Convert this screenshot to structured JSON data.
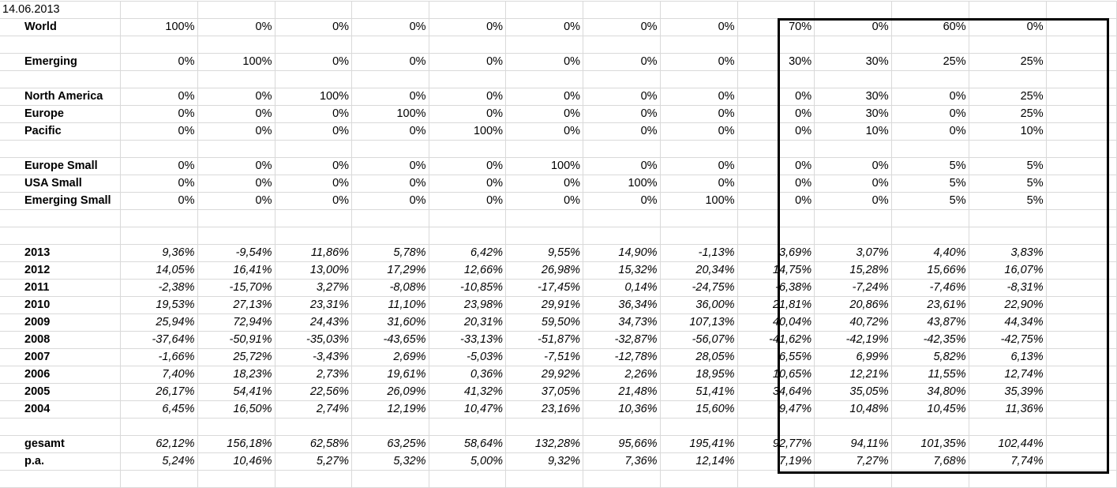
{
  "date": "14.06.2013",
  "rows": [
    {
      "type": "alloc",
      "label": "World",
      "values": [
        "100%",
        "0%",
        "0%",
        "0%",
        "0%",
        "0%",
        "0%",
        "0%",
        "70%",
        "0%",
        "60%",
        "0%"
      ]
    },
    {
      "type": "empty"
    },
    {
      "type": "alloc",
      "label": "Emerging",
      "values": [
        "0%",
        "100%",
        "0%",
        "0%",
        "0%",
        "0%",
        "0%",
        "0%",
        "30%",
        "30%",
        "25%",
        "25%"
      ]
    },
    {
      "type": "empty"
    },
    {
      "type": "alloc",
      "label": "North America",
      "values": [
        "0%",
        "0%",
        "100%",
        "0%",
        "0%",
        "0%",
        "0%",
        "0%",
        "0%",
        "30%",
        "0%",
        "25%"
      ]
    },
    {
      "type": "alloc",
      "label": "Europe",
      "values": [
        "0%",
        "0%",
        "0%",
        "100%",
        "0%",
        "0%",
        "0%",
        "0%",
        "0%",
        "30%",
        "0%",
        "25%"
      ]
    },
    {
      "type": "alloc",
      "label": "Pacific",
      "values": [
        "0%",
        "0%",
        "0%",
        "0%",
        "100%",
        "0%",
        "0%",
        "0%",
        "0%",
        "10%",
        "0%",
        "10%"
      ]
    },
    {
      "type": "empty"
    },
    {
      "type": "alloc",
      "label": "Europe Small",
      "values": [
        "0%",
        "0%",
        "0%",
        "0%",
        "0%",
        "100%",
        "0%",
        "0%",
        "0%",
        "0%",
        "5%",
        "5%"
      ]
    },
    {
      "type": "alloc",
      "label": "USA Small",
      "values": [
        "0%",
        "0%",
        "0%",
        "0%",
        "0%",
        "0%",
        "100%",
        "0%",
        "0%",
        "0%",
        "5%",
        "5%"
      ]
    },
    {
      "type": "alloc",
      "label": "Emerging Small",
      "values": [
        "0%",
        "0%",
        "0%",
        "0%",
        "0%",
        "0%",
        "0%",
        "100%",
        "0%",
        "0%",
        "5%",
        "5%"
      ]
    },
    {
      "type": "empty"
    },
    {
      "type": "empty"
    },
    {
      "type": "ret",
      "label": "2013",
      "values": [
        "9,36%",
        "-9,54%",
        "11,86%",
        "5,78%",
        "6,42%",
        "9,55%",
        "14,90%",
        "-1,13%",
        "3,69%",
        "3,07%",
        "4,40%",
        "3,83%"
      ]
    },
    {
      "type": "ret",
      "label": "2012",
      "values": [
        "14,05%",
        "16,41%",
        "13,00%",
        "17,29%",
        "12,66%",
        "26,98%",
        "15,32%",
        "20,34%",
        "14,75%",
        "15,28%",
        "15,66%",
        "16,07%"
      ]
    },
    {
      "type": "ret",
      "label": "2011",
      "values": [
        "-2,38%",
        "-15,70%",
        "3,27%",
        "-8,08%",
        "-10,85%",
        "-17,45%",
        "0,14%",
        "-24,75%",
        "-6,38%",
        "-7,24%",
        "-7,46%",
        "-8,31%"
      ]
    },
    {
      "type": "ret",
      "label": "2010",
      "values": [
        "19,53%",
        "27,13%",
        "23,31%",
        "11,10%",
        "23,98%",
        "29,91%",
        "36,34%",
        "36,00%",
        "21,81%",
        "20,86%",
        "23,61%",
        "22,90%"
      ]
    },
    {
      "type": "ret",
      "label": "2009",
      "values": [
        "25,94%",
        "72,94%",
        "24,43%",
        "31,60%",
        "20,31%",
        "59,50%",
        "34,73%",
        "107,13%",
        "40,04%",
        "40,72%",
        "43,87%",
        "44,34%"
      ]
    },
    {
      "type": "ret",
      "label": "2008",
      "values": [
        "-37,64%",
        "-50,91%",
        "-35,03%",
        "-43,65%",
        "-33,13%",
        "-51,87%",
        "-32,87%",
        "-56,07%",
        "-41,62%",
        "-42,19%",
        "-42,35%",
        "-42,75%"
      ]
    },
    {
      "type": "ret",
      "label": "2007",
      "values": [
        "-1,66%",
        "25,72%",
        "-3,43%",
        "2,69%",
        "-5,03%",
        "-7,51%",
        "-12,78%",
        "28,05%",
        "6,55%",
        "6,99%",
        "5,82%",
        "6,13%"
      ]
    },
    {
      "type": "ret",
      "label": "2006",
      "values": [
        "7,40%",
        "18,23%",
        "2,73%",
        "19,61%",
        "0,36%",
        "29,92%",
        "2,26%",
        "18,95%",
        "10,65%",
        "12,21%",
        "11,55%",
        "12,74%"
      ]
    },
    {
      "type": "ret",
      "label": "2005",
      "values": [
        "26,17%",
        "54,41%",
        "22,56%",
        "26,09%",
        "41,32%",
        "37,05%",
        "21,48%",
        "51,41%",
        "34,64%",
        "35,05%",
        "34,80%",
        "35,39%"
      ]
    },
    {
      "type": "ret",
      "label": "2004",
      "values": [
        "6,45%",
        "16,50%",
        "2,74%",
        "12,19%",
        "10,47%",
        "23,16%",
        "10,36%",
        "15,60%",
        "9,47%",
        "10,48%",
        "10,45%",
        "11,36%"
      ]
    },
    {
      "type": "empty"
    },
    {
      "type": "ret",
      "label": "gesamt",
      "values": [
        "62,12%",
        "156,18%",
        "62,58%",
        "63,25%",
        "58,64%",
        "132,28%",
        "95,66%",
        "195,41%",
        "92,77%",
        "94,11%",
        "101,35%",
        "102,44%"
      ]
    },
    {
      "type": "ret",
      "label": "p.a.",
      "values": [
        "5,24%",
        "10,46%",
        "5,27%",
        "5,32%",
        "5,00%",
        "9,32%",
        "7,36%",
        "12,14%",
        "7,19%",
        "7,27%",
        "7,68%",
        "7,74%"
      ]
    },
    {
      "type": "empty"
    }
  ]
}
